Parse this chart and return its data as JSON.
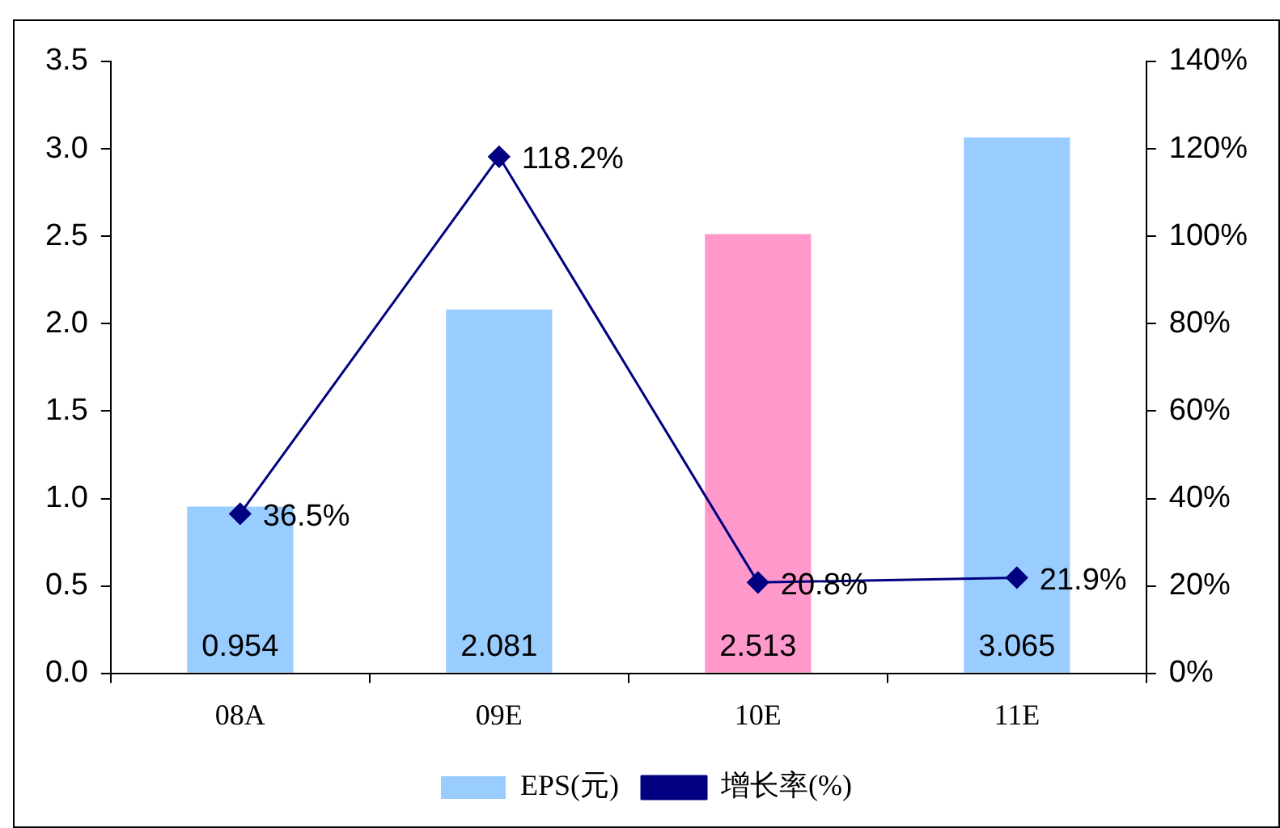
{
  "chart_data": {
    "type": "bar",
    "categories": [
      "08A",
      "09E",
      "10E",
      "11E"
    ],
    "series": [
      {
        "name": "EPS(元)",
        "color": "#99ccff",
        "colors": [
          "#99ccff",
          "#99ccff",
          "#ff99cc",
          "#99ccff"
        ],
        "values": [
          0.954,
          2.081,
          2.513,
          3.065
        ],
        "value_labels": [
          "0.954",
          "2.081",
          "2.513",
          "3.065"
        ]
      },
      {
        "name": "增长率(%)",
        "type": "line",
        "axis": "y2",
        "color": "#000080",
        "values": [
          36.5,
          118.2,
          20.8,
          21.9
        ],
        "value_labels": [
          "36.5%",
          "118.2%",
          "20.8%",
          "21.9%"
        ]
      }
    ],
    "ylim": [
      0,
      3.5
    ],
    "yticks": [
      {
        "value": 0,
        "label": "0.0"
      },
      {
        "value": 0.5,
        "label": "0.5"
      },
      {
        "value": 1,
        "label": "1.0"
      },
      {
        "value": 1.5,
        "label": "1.5"
      },
      {
        "value": 2,
        "label": "2.0"
      },
      {
        "value": 2.5,
        "label": "2.5"
      },
      {
        "value": 3,
        "label": "3.0"
      },
      {
        "value": 3.5,
        "label": "3.5"
      }
    ],
    "y2lim": [
      0,
      140
    ],
    "y2ticks": [
      {
        "value": 0,
        "label": "0%"
      },
      {
        "value": 20,
        "label": "20%"
      },
      {
        "value": 40,
        "label": "40%"
      },
      {
        "value": 60,
        "label": "60%"
      },
      {
        "value": 80,
        "label": "80%"
      },
      {
        "value": 100,
        "label": "100%"
      },
      {
        "value": 120,
        "label": "120%"
      },
      {
        "value": 140,
        "label": "140%"
      }
    ],
    "legend": "bottom",
    "marker": "diamond",
    "line_style": "solid"
  }
}
